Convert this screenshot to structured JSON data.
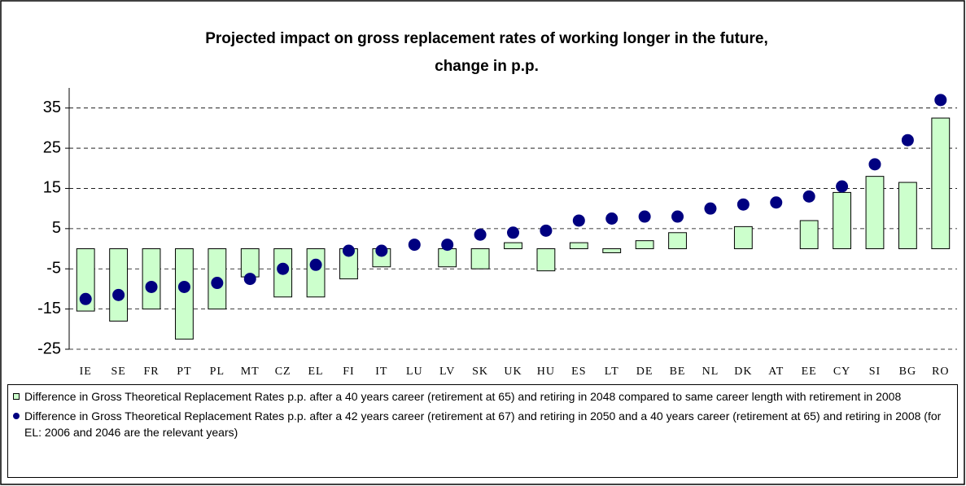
{
  "chart_data": {
    "type": "bar",
    "title": "Projected impact on gross replacement rates of working longer in the future,",
    "subtitle": "change in p.p.",
    "categories": [
      "IE",
      "SE",
      "FR",
      "PT",
      "PL",
      "MT",
      "CZ",
      "EL",
      "FI",
      "IT",
      "LU",
      "LV",
      "SK",
      "UK",
      "HU",
      "ES",
      "LT",
      "DE",
      "BE",
      "NL",
      "DK",
      "AT",
      "EE",
      "CY",
      "SI",
      "BG",
      "RO"
    ],
    "series": [
      {
        "name": "Difference in Gross Theoretical Replacement Rates p.p. after a 40 years career (retirement at 65) and retiring in 2048 compared to same career length with retirement in 2008",
        "type": "bar",
        "color": "#ccffcc",
        "values": [
          -15.5,
          -18,
          -15,
          -22.5,
          -15,
          -7,
          -12,
          -12,
          -7.5,
          -4.5,
          0,
          -4.5,
          -5,
          1.5,
          -5.5,
          1.5,
          -1,
          2,
          4,
          0,
          5.5,
          0,
          7,
          14,
          18,
          16.5,
          32.5
        ]
      },
      {
        "name": "Difference in Gross Theoretical Replacement Rates p.p. after a 42 years career (retirement at 67) and retiring in 2050 and a 40 years career (retirement at 65) and retiring in 2008 (for EL: 2006 and 2046 are the relevant years)",
        "type": "dot",
        "color": "#000080",
        "values": [
          -12.5,
          -11.5,
          -9.5,
          -9.5,
          -8.5,
          -7.5,
          -5,
          -4,
          -0.5,
          -0.5,
          1,
          1,
          3.5,
          4,
          4.5,
          7,
          7.5,
          8,
          8,
          10,
          11,
          11.5,
          13,
          15.5,
          21,
          27,
          37
        ]
      }
    ],
    "ylim": [
      -25,
      40
    ],
    "yticks": [
      -25,
      -15,
      -5,
      5,
      15,
      25,
      35
    ],
    "grid": true
  }
}
